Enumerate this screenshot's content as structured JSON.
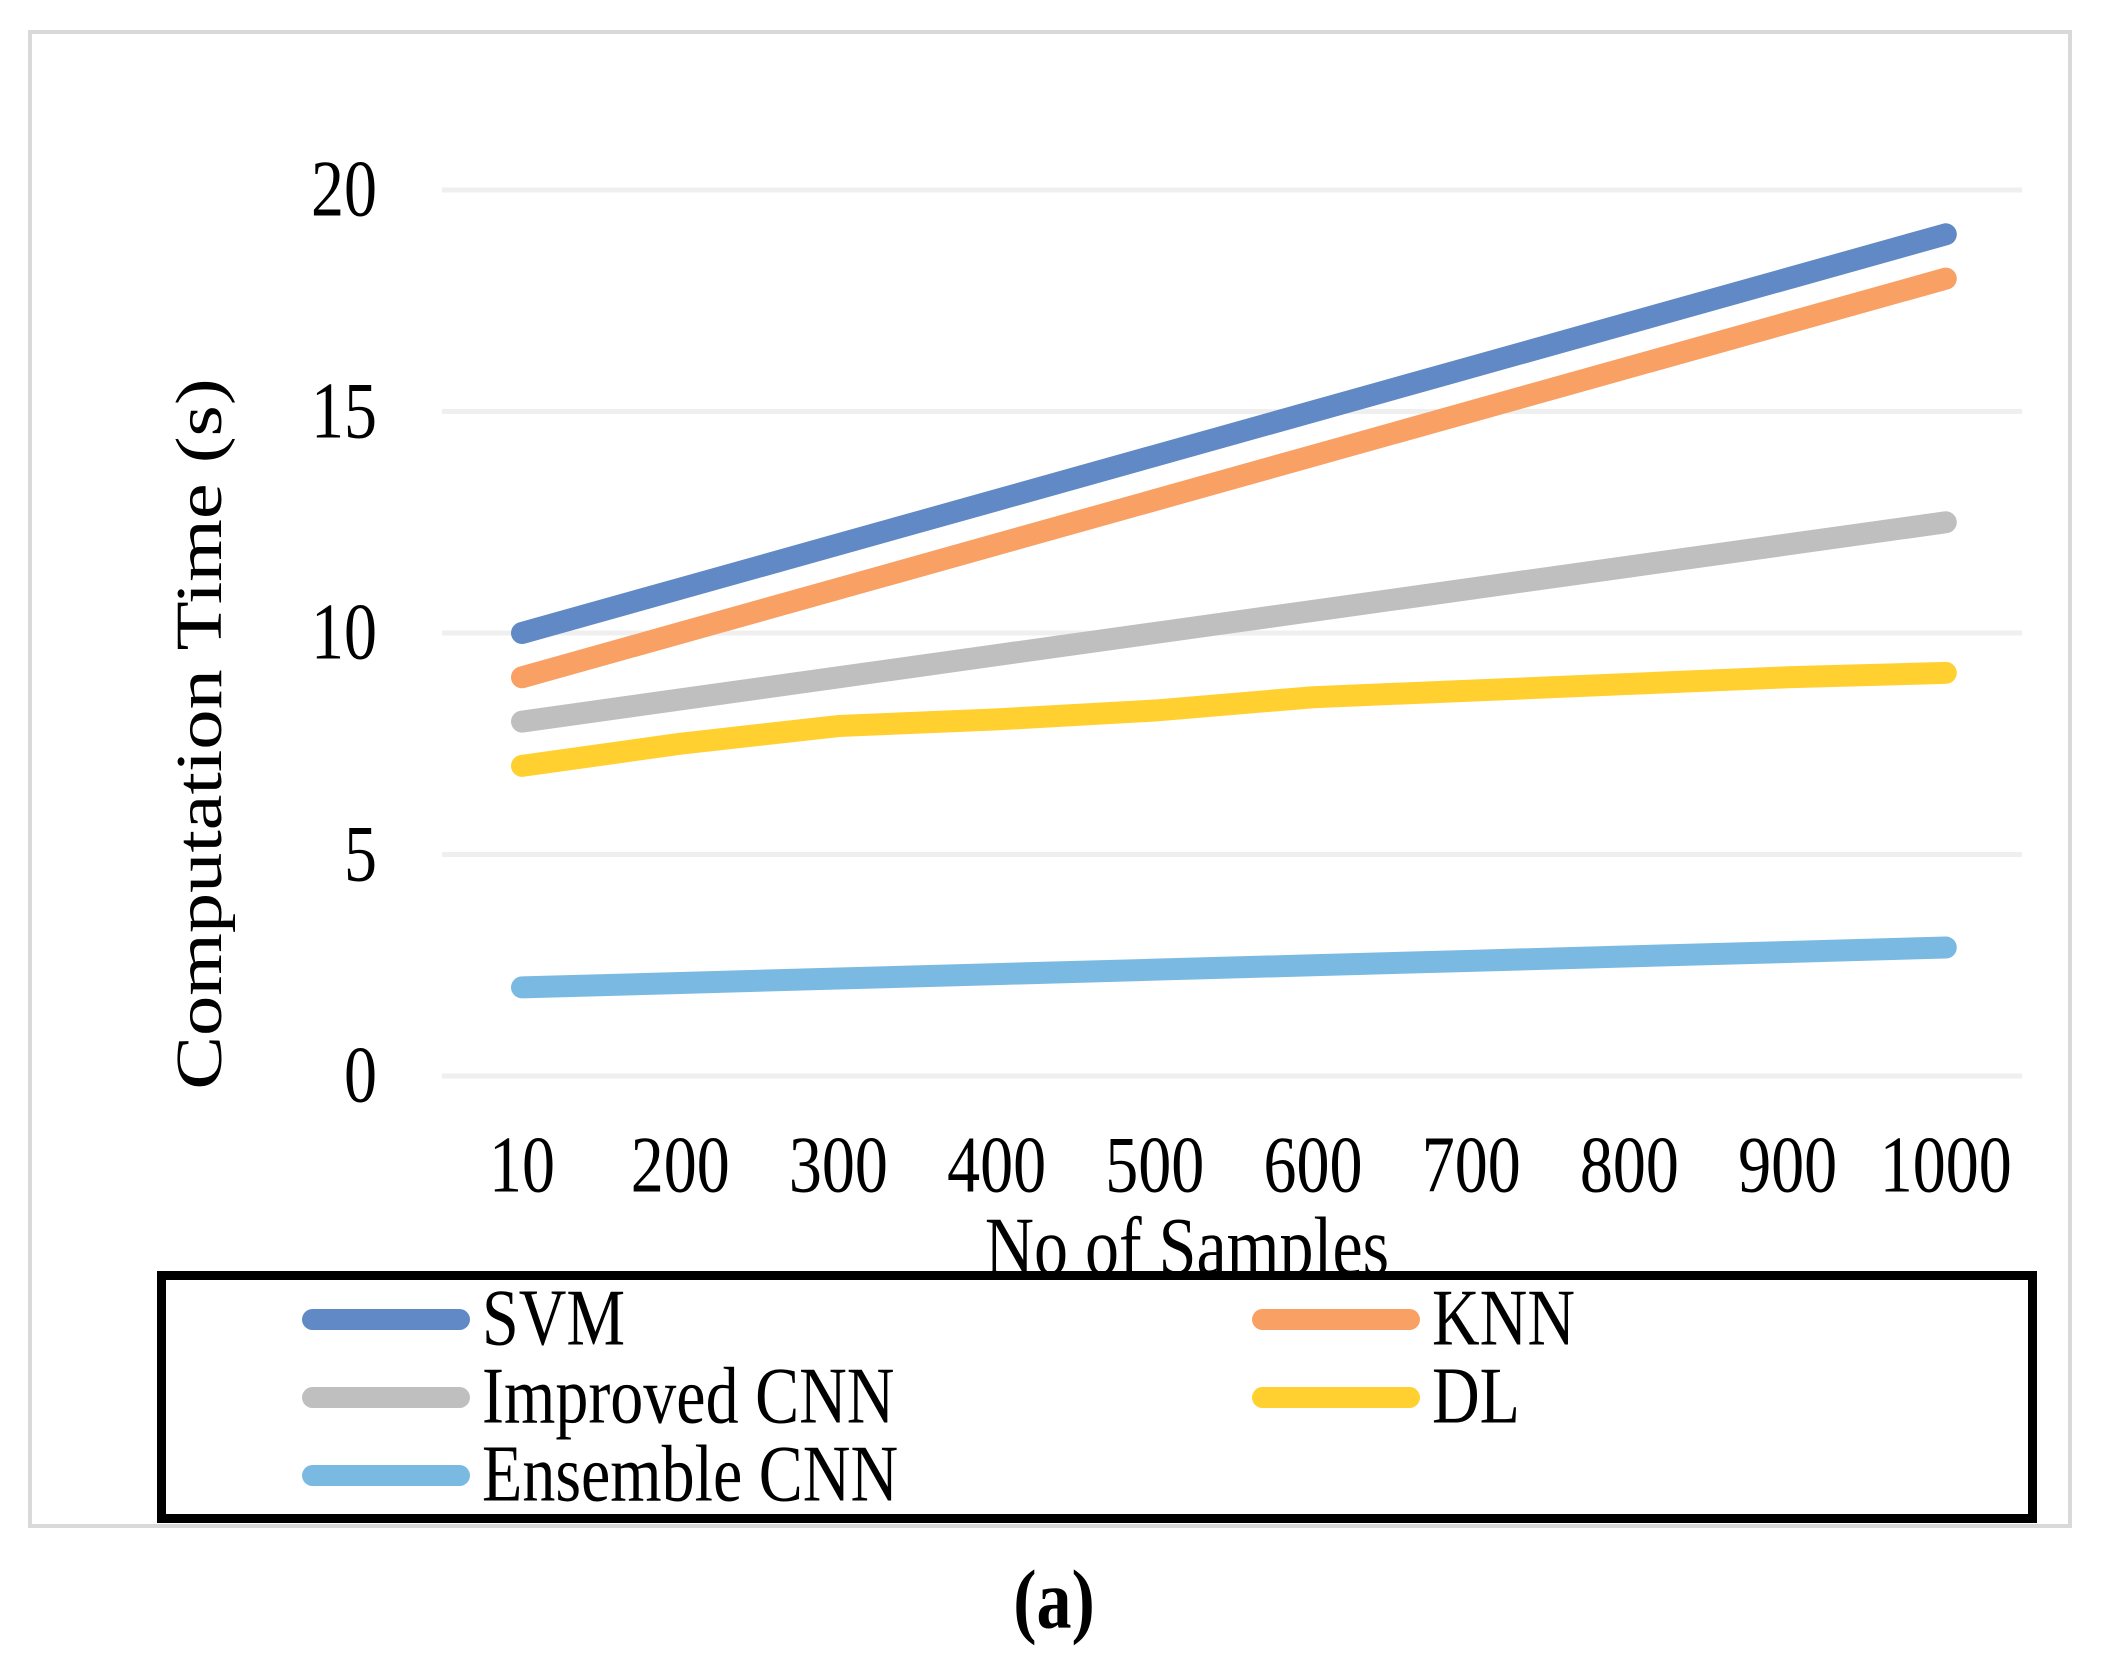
{
  "figure": {
    "caption": "(a)"
  },
  "chart_data": {
    "type": "line",
    "title": "",
    "xlabel": "No of Samples",
    "ylabel": "Computation Time (s)",
    "categories": [
      "10",
      "200",
      "300",
      "400",
      "500",
      "600",
      "700",
      "800",
      "900",
      "1000"
    ],
    "yticks": [
      0,
      5,
      10,
      15,
      20
    ],
    "ylim": [
      0,
      20
    ],
    "grid": "horizontal-only",
    "gridline_color": "#EFEFEF",
    "legend_position": "bottom-boxed-2-columns",
    "series": [
      {
        "name": "SVM",
        "color": "#6089C5",
        "values": [
          10,
          11,
          12,
          13,
          14,
          15,
          16,
          17,
          18,
          19
        ]
      },
      {
        "name": "KNN",
        "color": "#F9A064",
        "values": [
          9,
          10,
          11,
          12,
          13,
          14,
          15,
          16,
          17,
          18
        ]
      },
      {
        "name": "Improved CNN",
        "color": "#BFBFBF",
        "values": [
          8,
          8.5,
          9,
          9.5,
          10,
          10.5,
          11,
          11.5,
          12,
          12.5
        ]
      },
      {
        "name": "DL",
        "color": "#FFD02F",
        "values": [
          7,
          7.5,
          7.9,
          8.05,
          8.25,
          8.55,
          8.7,
          8.85,
          9,
          9.1
        ]
      },
      {
        "name": "Ensemble CNN",
        "color": "#7ABAE2",
        "values": [
          2,
          2.1,
          2.2,
          2.3,
          2.4,
          2.5,
          2.6,
          2.7,
          2.8,
          2.9
        ]
      }
    ],
    "legend_columns": [
      [
        "SVM",
        "Improved CNN",
        "Ensemble CNN"
      ],
      [
        "KNN",
        "DL"
      ]
    ]
  }
}
